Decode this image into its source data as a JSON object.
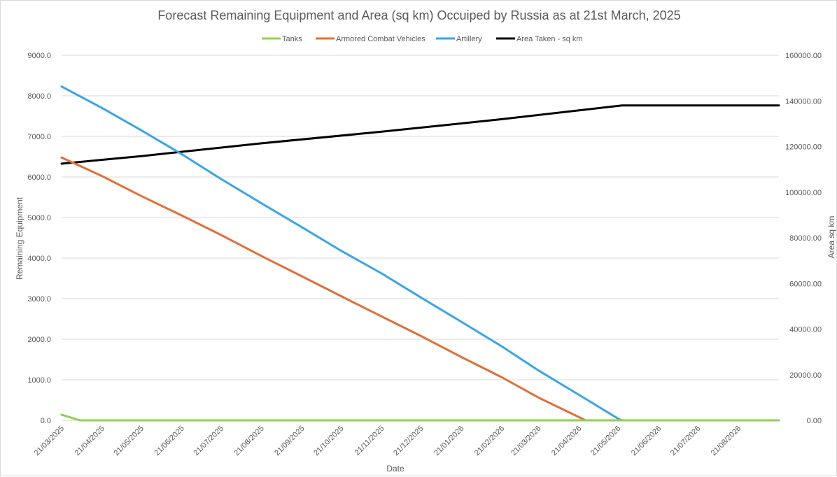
{
  "chart_data": {
    "type": "line",
    "title": "Forecast Remaining Equipment and Area (sq km) Occuiped by Russia as at 21st March, 2025",
    "xlabel": "Date",
    "ylabel": "Remaining Equipment",
    "y2label": "Area sq km",
    "ylim": [
      0,
      9000
    ],
    "y2lim": [
      0,
      160000
    ],
    "yticks": [
      "0.0",
      "1000.0",
      "2000.0",
      "3000.0",
      "4000.0",
      "5000.0",
      "6000.0",
      "7000.0",
      "8000.0",
      "9000.0"
    ],
    "y2ticks": [
      "0.00",
      "20000.00",
      "40000.00",
      "60000.00",
      "80000.00",
      "100000.00",
      "120000.00",
      "140000.00",
      "160000.00"
    ],
    "categories": [
      "21/03/2025",
      "21/04/2025",
      "21/05/2025",
      "21/06/2025",
      "21/07/2025",
      "21/08/2025",
      "21/09/2025",
      "21/10/2025",
      "21/11/2025",
      "21/12/2025",
      "21/01/2026",
      "21/02/2026",
      "21/03/2026",
      "21/04/2026",
      "21/05/2026",
      "21/06/2026",
      "21/07/2026",
      "21/08/2026"
    ],
    "x_end": "21/09/2026",
    "grid": true,
    "legend_position": "top",
    "series": [
      {
        "name": "Tanks",
        "color": "#92d050",
        "axis": "left",
        "points": [
          [
            "21/03/2025",
            140
          ],
          [
            "04/04/2025",
            0
          ],
          [
            "21/09/2026",
            0
          ]
        ]
      },
      {
        "name": "Armored Combat Vehicles",
        "color": "#e0703a",
        "axis": "left",
        "points": [
          [
            "21/03/2025",
            6480
          ],
          [
            "21/04/2025",
            6020
          ],
          [
            "21/05/2025",
            5530
          ],
          [
            "21/06/2025",
            5050
          ],
          [
            "21/07/2025",
            4570
          ],
          [
            "21/08/2025",
            4050
          ],
          [
            "21/09/2025",
            3550
          ],
          [
            "21/10/2025",
            3060
          ],
          [
            "21/11/2025",
            2560
          ],
          [
            "21/12/2025",
            2080
          ],
          [
            "21/01/2026",
            1560
          ],
          [
            "21/02/2026",
            1060
          ],
          [
            "21/03/2026",
            560
          ],
          [
            "21/04/2026",
            80
          ],
          [
            "26/04/2026",
            0
          ],
          [
            "21/09/2026",
            0
          ]
        ]
      },
      {
        "name": "Artillery",
        "color": "#3aa5e5",
        "axis": "left",
        "points": [
          [
            "21/03/2025",
            8230
          ],
          [
            "21/04/2025",
            7700
          ],
          [
            "21/05/2025",
            7150
          ],
          [
            "21/06/2025",
            6560
          ],
          [
            "21/07/2025",
            5950
          ],
          [
            "21/08/2025",
            5350
          ],
          [
            "21/09/2025",
            4760
          ],
          [
            "21/10/2025",
            4180
          ],
          [
            "21/11/2025",
            3620
          ],
          [
            "21/12/2025",
            3030
          ],
          [
            "21/01/2026",
            2430
          ],
          [
            "21/02/2026",
            1820
          ],
          [
            "21/03/2026",
            1230
          ],
          [
            "21/04/2026",
            630
          ],
          [
            "21/05/2026",
            40
          ],
          [
            "24/05/2026",
            0
          ],
          [
            "21/09/2026",
            0
          ]
        ]
      },
      {
        "name": "Area Taken - sq km",
        "color": "#000000",
        "axis": "right",
        "points": [
          [
            "21/03/2025",
            112500
          ],
          [
            "21/05/2025",
            115800
          ],
          [
            "21/08/2025",
            121400
          ],
          [
            "21/11/2025",
            126500
          ],
          [
            "21/02/2026",
            132000
          ],
          [
            "21/05/2026",
            137800
          ],
          [
            "24/05/2026",
            138000
          ],
          [
            "21/09/2026",
            138000
          ]
        ]
      }
    ]
  }
}
